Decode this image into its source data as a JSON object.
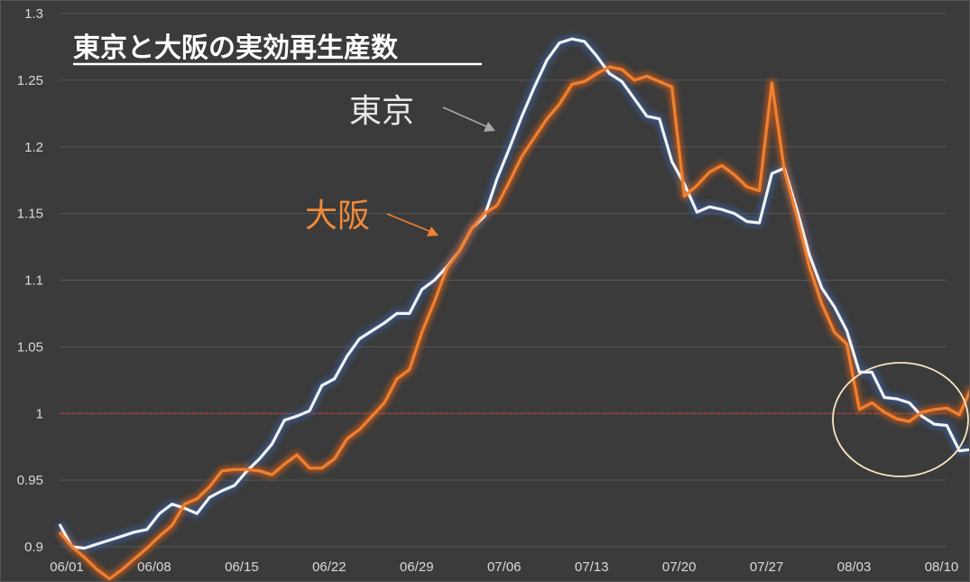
{
  "chart_data": {
    "type": "line",
    "title": "東京と大阪の実効再生産数",
    "ylim": [
      0.9,
      1.3
    ],
    "yticks": [
      "0.9",
      "0.95",
      "1",
      "1.05",
      "1.1",
      "1.15",
      "1.2",
      "1.25",
      "1.3"
    ],
    "xtick_labels": [
      "06/01",
      "06/08",
      "06/15",
      "06/22",
      "06/29",
      "07/06",
      "07/13",
      "07/20",
      "07/27",
      "08/03",
      "08/10"
    ],
    "x_start": "06/01",
    "grid": true,
    "reference_line": 1.0,
    "series": [
      {
        "name": "東京",
        "color": "#f2f2f2",
        "values": [
          0.917,
          0.9,
          0.899,
          0.902,
          0.905,
          0.908,
          0.911,
          0.913,
          0.925,
          0.932,
          0.929,
          0.925,
          0.937,
          0.942,
          0.946,
          0.957,
          0.966,
          0.977,
          0.995,
          0.998,
          1.002,
          1.021,
          1.026,
          1.043,
          1.056,
          1.062,
          1.068,
          1.075,
          1.075,
          1.093,
          1.1,
          1.11,
          1.122,
          1.139,
          1.148,
          1.176,
          1.199,
          1.223,
          1.245,
          1.265,
          1.278,
          1.281,
          1.279,
          1.268,
          1.255,
          1.249,
          1.236,
          1.223,
          1.221,
          1.189,
          1.172,
          1.151,
          1.155,
          1.153,
          1.15,
          1.144,
          1.143,
          1.18,
          1.184,
          1.153,
          1.119,
          1.094,
          1.08,
          1.062,
          1.031,
          1.031,
          1.012,
          1.011,
          1.008,
          0.998,
          0.992,
          0.991,
          0.972,
          0.973
        ]
      },
      {
        "name": "大阪",
        "color": "#f08030",
        "values": [
          0.911,
          0.9,
          0.892,
          0.883,
          0.876,
          0.883,
          0.891,
          0.899,
          0.908,
          0.916,
          0.932,
          0.936,
          0.945,
          0.957,
          0.958,
          0.958,
          0.957,
          0.954,
          0.962,
          0.969,
          0.959,
          0.959,
          0.966,
          0.981,
          0.988,
          0.998,
          1.008,
          1.026,
          1.033,
          1.061,
          1.084,
          1.109,
          1.122,
          1.139,
          1.15,
          1.156,
          1.174,
          1.193,
          1.207,
          1.221,
          1.232,
          1.247,
          1.249,
          1.255,
          1.26,
          1.258,
          1.25,
          1.253,
          1.249,
          1.245,
          1.163,
          1.171,
          1.181,
          1.186,
          1.179,
          1.17,
          1.167,
          1.248,
          1.182,
          1.148,
          1.11,
          1.082,
          1.061,
          1.052,
          1.003,
          1.008,
          1.001,
          0.996,
          0.994,
          1.001,
          1.003,
          1.004,
          0.999,
          1.02
        ]
      }
    ]
  }
}
